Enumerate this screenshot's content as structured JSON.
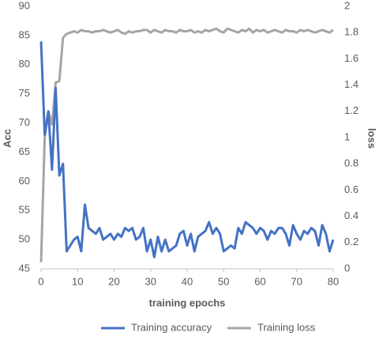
{
  "chart_data": {
    "type": "line",
    "xlabel": "training epochs",
    "ylabel": "Acc",
    "y2label": "loss",
    "x": [
      0,
      1,
      2,
      3,
      4,
      5,
      6,
      7,
      8,
      9,
      10,
      11,
      12,
      13,
      14,
      15,
      16,
      17,
      18,
      19,
      20,
      21,
      22,
      23,
      24,
      25,
      26,
      27,
      28,
      29,
      30,
      31,
      32,
      33,
      34,
      35,
      36,
      37,
      38,
      39,
      40,
      41,
      42,
      43,
      44,
      45,
      46,
      47,
      48,
      49,
      50,
      51,
      52,
      53,
      54,
      55,
      56,
      57,
      58,
      59,
      60,
      61,
      62,
      63,
      64,
      65,
      66,
      67,
      68,
      69,
      70,
      71,
      72,
      73,
      74,
      75,
      76,
      77,
      78,
      79,
      80
    ],
    "series": [
      {
        "name": "Training accuracy",
        "color": "#4472c4",
        "axis": "y",
        "values": [
          84,
          68,
          72,
          62,
          76,
          61,
          63,
          48,
          49,
          50,
          50.5,
          48,
          56,
          52,
          51.5,
          51,
          52,
          50,
          50.5,
          51,
          50,
          51,
          50.5,
          52,
          51.5,
          52,
          50,
          50.5,
          52,
          48,
          50,
          47,
          50.5,
          48,
          50,
          48,
          48.5,
          49,
          51,
          51.5,
          49,
          51,
          48,
          50.5,
          51,
          51.5,
          53,
          51,
          52,
          51,
          48,
          48.5,
          49,
          48.5,
          52,
          51,
          53,
          52.5,
          52,
          51,
          52,
          51.5,
          50,
          51.5,
          51,
          52,
          52,
          51,
          49,
          52.5,
          51,
          50,
          51.5,
          51,
          52,
          51.5,
          49,
          52.5,
          51,
          48,
          50
        ]
      },
      {
        "name": "Training loss",
        "color": "#a5a5a5",
        "axis": "y2",
        "values": [
          0.05,
          1.0,
          1.2,
          1.1,
          1.42,
          1.43,
          1.76,
          1.79,
          1.8,
          1.81,
          1.8,
          1.82,
          1.81,
          1.81,
          1.8,
          1.81,
          1.81,
          1.82,
          1.81,
          1.8,
          1.81,
          1.82,
          1.8,
          1.79,
          1.81,
          1.8,
          1.81,
          1.81,
          1.82,
          1.82,
          1.8,
          1.82,
          1.81,
          1.8,
          1.82,
          1.81,
          1.81,
          1.8,
          1.82,
          1.81,
          1.81,
          1.82,
          1.8,
          1.81,
          1.8,
          1.82,
          1.81,
          1.82,
          1.83,
          1.81,
          1.8,
          1.83,
          1.82,
          1.81,
          1.8,
          1.82,
          1.81,
          1.83,
          1.8,
          1.82,
          1.81,
          1.82,
          1.8,
          1.81,
          1.82,
          1.81,
          1.8,
          1.82,
          1.81,
          1.81,
          1.8,
          1.82,
          1.81,
          1.82,
          1.81,
          1.8,
          1.81,
          1.82,
          1.81,
          1.8,
          1.82
        ]
      }
    ],
    "xlim": [
      0,
      80
    ],
    "xticks": [
      0,
      10,
      20,
      30,
      40,
      50,
      60,
      70,
      80
    ],
    "ylim": [
      45,
      90
    ],
    "yticks": [
      45,
      50,
      55,
      60,
      65,
      70,
      75,
      80,
      85,
      90
    ],
    "y2lim": [
      0,
      2
    ],
    "y2ticks": [
      0,
      0.2,
      0.4,
      0.6,
      0.8,
      1,
      1.2,
      1.4,
      1.6,
      1.8,
      2
    ],
    "grid": false,
    "legend": "bottom"
  }
}
